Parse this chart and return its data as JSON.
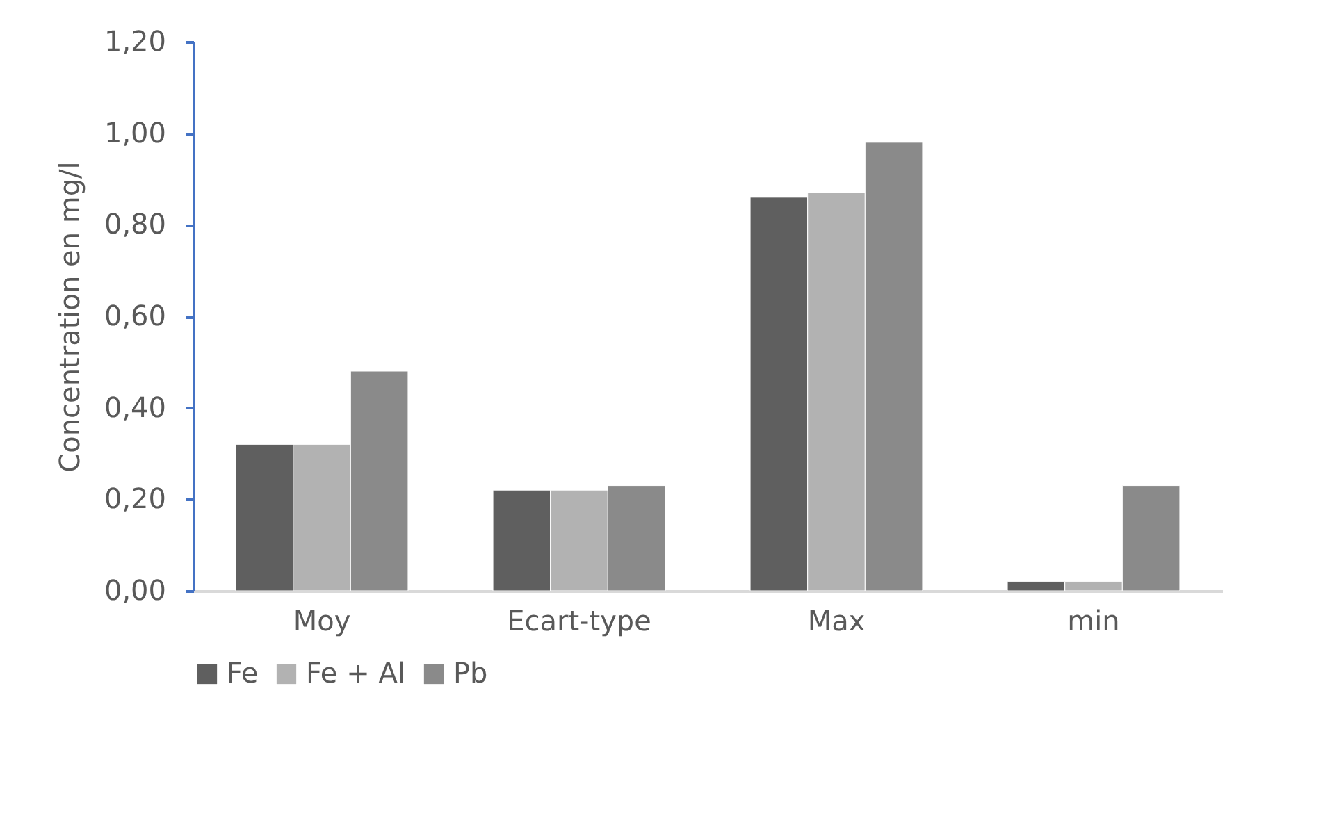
{
  "chart_data": {
    "type": "bar",
    "ylabel": "Concentration en mg/l",
    "categories": [
      "Moy",
      "Ecart-type",
      "Max",
      "min"
    ],
    "series": [
      {
        "name": "Fe",
        "color": "#5f5f5f",
        "values": [
          0.32,
          0.22,
          0.86,
          0.02
        ]
      },
      {
        "name": "Fe + Al",
        "color": "#b2b2b2",
        "values": [
          0.32,
          0.22,
          0.87,
          0.02
        ]
      },
      {
        "name": "Pb",
        "color": "#8a8a8a",
        "values": [
          0.48,
          0.23,
          0.98,
          0.23
        ]
      }
    ],
    "ylim": [
      0,
      1.2
    ],
    "yticks": [
      {
        "value": 0,
        "label": "0,00"
      },
      {
        "value": 0.2,
        "label": "0,20"
      },
      {
        "value": 0.4,
        "label": "0,40"
      },
      {
        "value": 0.6,
        "label": "0,60"
      },
      {
        "value": 0.8,
        "label": "0,80"
      },
      {
        "value": 1.0,
        "label": "1,00"
      },
      {
        "value": 1.2,
        "label": "1,20"
      }
    ],
    "grid": false,
    "legend": "bottom"
  }
}
